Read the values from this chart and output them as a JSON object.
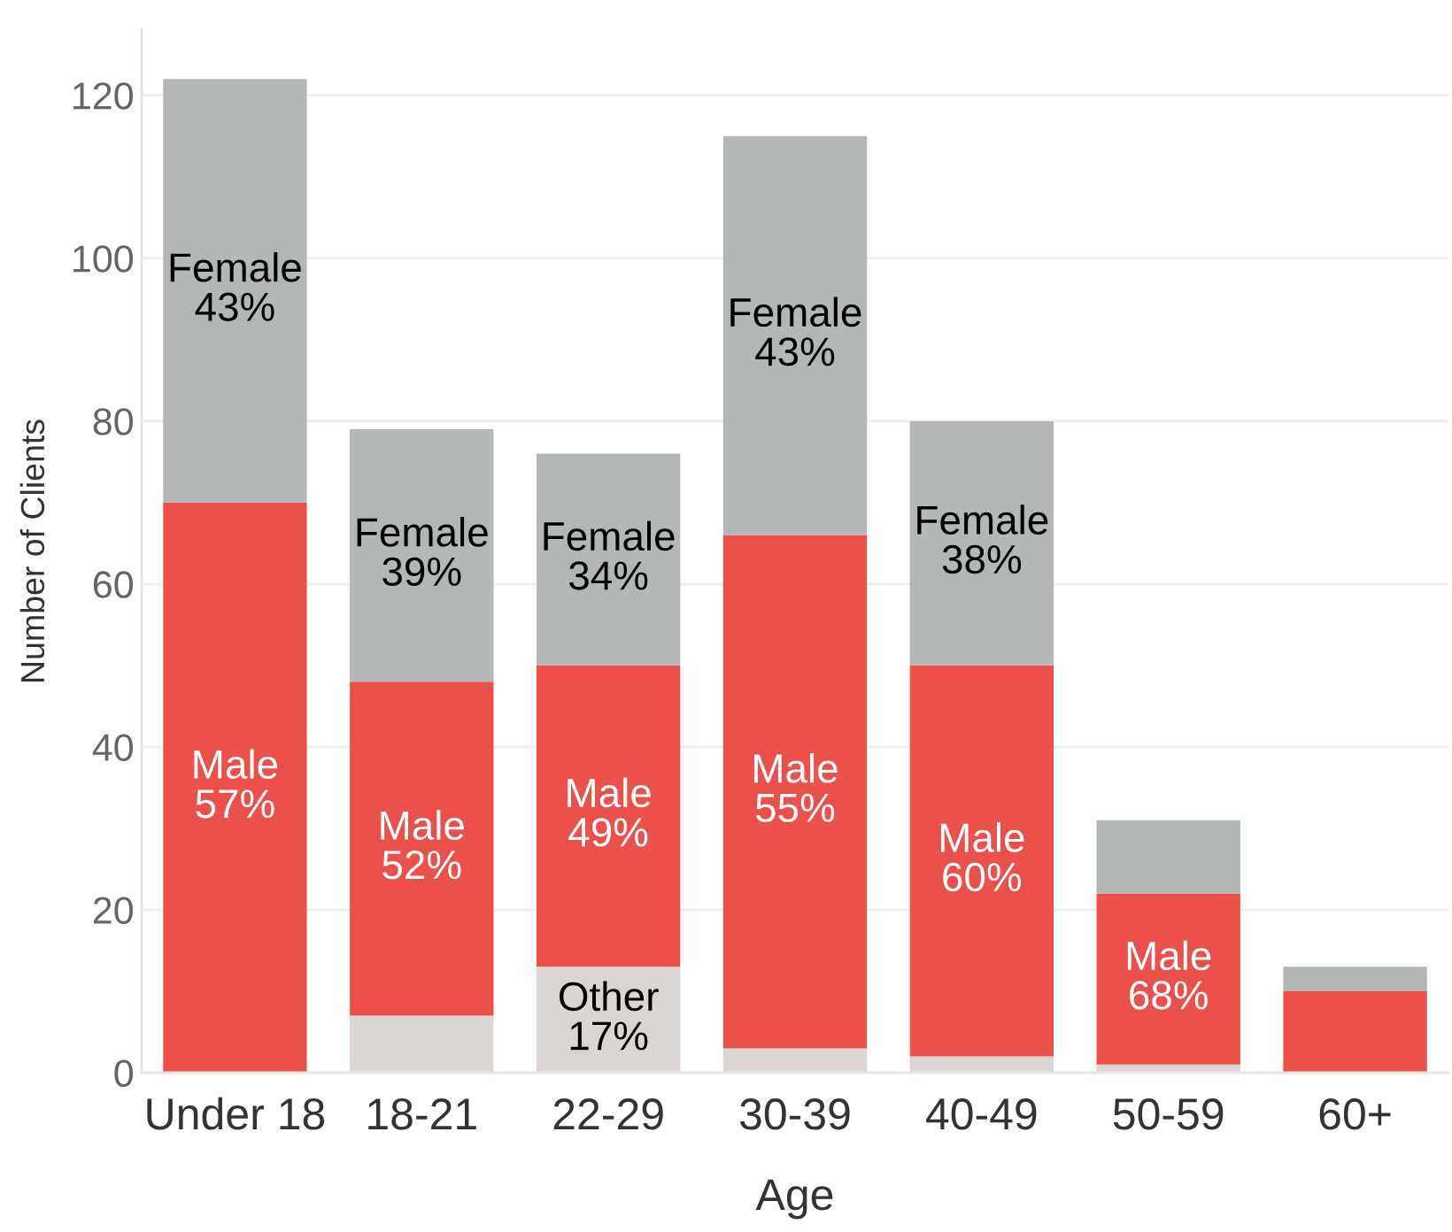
{
  "chart_data": {
    "type": "bar",
    "stacked": true,
    "xlabel": "Age",
    "ylabel": "Number of Clients",
    "categories": [
      "Under 18",
      "18-21",
      "22-29",
      "30-39",
      "40-49",
      "50-59",
      "60+"
    ],
    "series": [
      {
        "name": "Other",
        "color": "#dbd5d3",
        "values": [
          null,
          7,
          13,
          3,
          2,
          1,
          null
        ]
      },
      {
        "name": "Male",
        "color": "#eb504a",
        "values": [
          70,
          41,
          37,
          63,
          48,
          21,
          10
        ]
      },
      {
        "name": "Female",
        "color": "#b4b7b8",
        "values": [
          52,
          31,
          26,
          49,
          30,
          9,
          3
        ]
      }
    ],
    "annotations": [
      "17%",
      "57%",
      "52%",
      "49%",
      "55%",
      "60%",
      "68%",
      "43%",
      "39%",
      "34%",
      "43%",
      "38%"
    ],
    "ylim": [
      0,
      128
    ],
    "yticks": [
      0,
      20,
      40,
      60,
      80,
      100,
      120
    ],
    "grid": "y"
  }
}
